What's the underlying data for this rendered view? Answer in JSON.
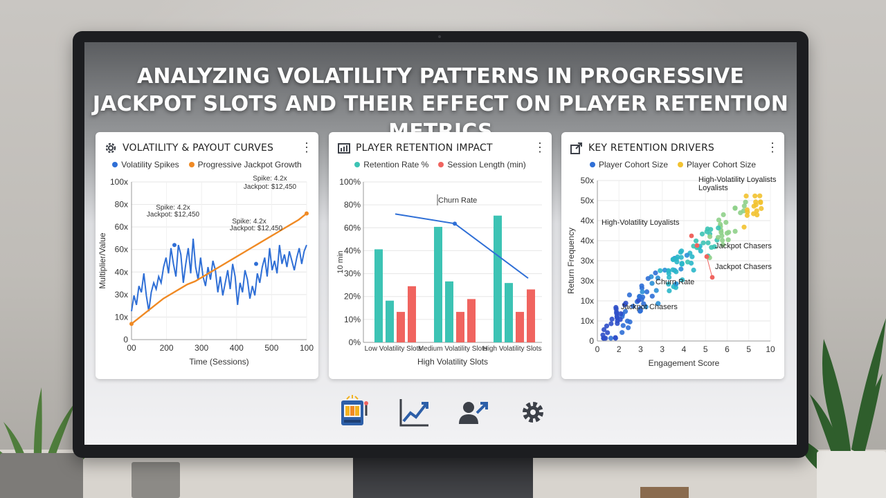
{
  "page_title": "ANALYZING VOLATILITY PATTERNS IN PROGRESSIVE JACKPOT SLOTS AND THEIR EFFECT ON PLAYER RETENTION METRICS",
  "colors": {
    "blue": "#2f6fd6",
    "orange": "#f08a24",
    "teal": "#3cc3b4",
    "coral": "#f0645f",
    "gold": "#f2c230",
    "cyan": "#2ab7c9"
  },
  "cards": [
    {
      "title": "VOLATILITY & PAYOUT CURVES",
      "icon": "gear-chart-icon",
      "menu": "⋮"
    },
    {
      "title": "PLAYER RETENTION IMPACT",
      "icon": "bar-chart-icon",
      "menu": "⋮"
    },
    {
      "title": "KEY RETENTION DRIVERS",
      "icon": "arrow-box-icon",
      "menu": "⋮"
    }
  ],
  "nav_icons": [
    "slot-machine-icon",
    "growth-chart-icon",
    "user-growth-icon",
    "settings-gear-icon"
  ],
  "chart_data": [
    {
      "type": "line",
      "title": "VOLATILITY & PAYOUT CURVES",
      "xlabel": "Time (Sessions)",
      "ylabel": "Multiplier/Value",
      "x_ticks": [
        "00",
        "200",
        "300",
        "400",
        "500",
        "100"
      ],
      "y_ticks": [
        "0",
        "10x",
        "30x",
        "40x",
        "60x",
        "60x",
        "80x",
        "100x"
      ],
      "ylim": [
        0,
        100
      ],
      "legend_position": "top",
      "series": [
        {
          "name": "Volatility Spikes",
          "color": "#2f6fd6",
          "y": [
            18,
            28,
            22,
            34,
            30,
            42,
            28,
            18,
            30,
            36,
            32,
            40,
            36,
            46,
            52,
            42,
            58,
            48,
            40,
            60,
            54,
            36,
            48,
            58,
            42,
            64,
            46,
            38,
            52,
            40,
            34,
            46,
            38,
            50,
            44,
            30,
            40,
            28,
            36,
            44,
            32,
            48,
            40,
            22,
            36,
            30,
            44,
            38,
            26,
            34,
            28,
            42,
            36,
            46,
            52,
            40,
            58,
            44,
            50,
            42,
            60,
            48,
            54,
            46,
            56,
            50,
            44,
            52,
            58,
            48,
            56,
            60
          ]
        },
        {
          "name": "Progressive Jackpot Growth",
          "color": "#f08a24",
          "y": [
            10,
            14,
            18,
            22,
            26,
            29,
            32,
            35,
            37,
            40,
            43,
            46,
            49,
            52,
            55,
            58,
            61,
            64,
            67,
            70,
            73,
            76,
            80
          ]
        }
      ],
      "annotations": [
        {
          "text": "Spike: 4.2x",
          "text2": "Jackpot: $12,450"
        },
        {
          "text": "Spike: 4.2x",
          "text2": "Jackpot: $12,450"
        },
        {
          "text": "Spike: 4.2x",
          "text2": "Jackpot: $12,450"
        }
      ]
    },
    {
      "type": "bar",
      "title": "PLAYER RETENTION IMPACT",
      "xlabel": "High Volatility Slots",
      "ylabel": "10 min",
      "categories": [
        "Low Volatility Slots",
        "Medium Volatility Slots",
        "High Volatility Slots"
      ],
      "y_ticks": [
        "0%",
        "10%",
        "20%",
        "30%",
        "40%",
        "60%",
        "80%",
        "100%"
      ],
      "ylim": [
        0,
        100
      ],
      "legend_position": "top",
      "series": [
        {
          "name": "Retention Rate %",
          "color": "#3cc3b4",
          "values": [
            [
              58,
              26
            ],
            [
              72,
              38
            ],
            [
              79,
              37
            ]
          ]
        },
        {
          "name": "Session Length (min)",
          "color": "#f0645f",
          "values": [
            [
              19,
              35
            ],
            [
              19,
              27
            ],
            [
              19,
              33
            ]
          ]
        }
      ],
      "line": {
        "name": "Churn Rate",
        "values": [
          80,
          74,
          40
        ]
      }
    },
    {
      "type": "scatter",
      "title": "KEY RETENTION DRIVERS",
      "xlabel": "Engagement Score",
      "ylabel": "Return Frequency",
      "x_ticks": [
        "0",
        "2",
        "3",
        "3",
        "4",
        "5",
        "6",
        "5",
        "10"
      ],
      "y_ticks": [
        "0",
        "10x",
        "10x",
        "30x",
        "30x",
        "40x",
        "40x",
        "50x",
        "50x"
      ],
      "xlim": [
        0,
        10
      ],
      "ylim": [
        0,
        50
      ],
      "legend_position": "top",
      "series": [
        {
          "name": "Player Cohort Size",
          "color": "#2f6fd6"
        },
        {
          "name": "Player Cohort Size",
          "color": "#f2c230"
        }
      ],
      "labels": [
        "High-Volatility Loyalists",
        "Loyalists",
        "High-Volatility Loyalists",
        "Jackpot Chasers",
        "Jackpot Chasers",
        "Churn Rate",
        "Jackpot Chasers"
      ]
    }
  ]
}
